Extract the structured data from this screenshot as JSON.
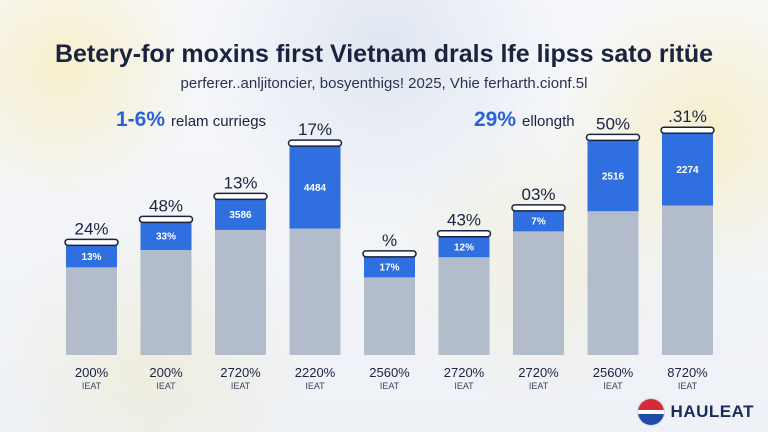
{
  "title": "Betery-for moxins first Vietnam drals lfe lipss sato ritüe",
  "subtitle": "perferer..anljitoncier, bosyenthigs! 2025, Vhie ferharth.cionf.5l",
  "stats": {
    "left": {
      "value": "1-6%",
      "text": "relam curriegs"
    },
    "right": {
      "value": "29%",
      "text": "ellongth"
    }
  },
  "brand": {
    "name": "HAULEAT"
  },
  "colors": {
    "bar_gray": "#b3bcca",
    "bar_blue": "#2f6fe0",
    "text_dark": "#1a2340",
    "accent": "#2a63d6"
  },
  "chart_data": {
    "type": "bar",
    "stacked": true,
    "categories": [
      "200%",
      "200%",
      "2720%",
      "2220%",
      "2560%",
      "2720%",
      "2720%",
      "2560%",
      "8720%"
    ],
    "category_sublabels": [
      "IEAT",
      "IEAT",
      "IEAT",
      "IEAT",
      "IEAT",
      "IEAT",
      "IEAT",
      "IEAT",
      "IEAT"
    ],
    "series": [
      {
        "values": [
          61,
          73,
          87,
          88,
          54,
          68,
          86,
          100,
          104
        ]
      },
      {
        "values": [
          16,
          20,
          22,
          58,
          15,
          15,
          15,
          50,
          51
        ]
      }
    ],
    "top_labels": [
      "24%",
      "48%",
      "13%",
      "17%",
      "%",
      "43%",
      "03%",
      "50%",
      ".31%"
    ],
    "inner_labels": [
      "13%",
      "33%",
      "3586",
      "4484",
      "17%",
      "12%",
      "7%",
      "2516",
      "2274"
    ],
    "ylim": [
      0,
      160
    ],
    "grid": false
  }
}
